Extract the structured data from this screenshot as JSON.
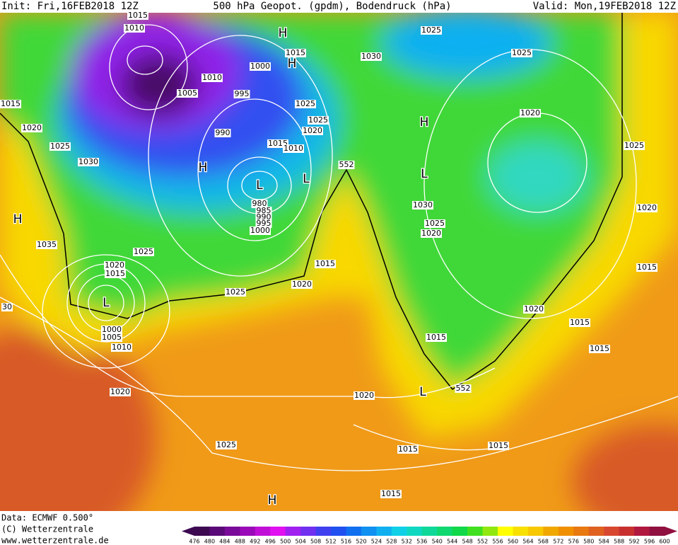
{
  "header": {
    "init": "Init: Fri,16FEB2018 12Z",
    "title": "500 hPa Geopot. (gpdm), Bodendruck (hPa)",
    "valid": "Valid: Mon,19FEB2018 12Z"
  },
  "footer": {
    "data": "Data: ECMWF  0.500°",
    "copyright": "(C) Wetterzentrale",
    "url": "www.wetterzentrale.de"
  },
  "isobar_labels": [
    "1015",
    "1010",
    "1010",
    "1005",
    "995",
    "1000",
    "990",
    "1015",
    "1030",
    "1025",
    "1025",
    "1025",
    "1025",
    "1020",
    "1015",
    "1010",
    "1015",
    "1020",
    "1025",
    "1030",
    "1020",
    "1025",
    "552",
    "1030",
    "1025",
    "1020",
    "1020",
    "980",
    "985",
    "990",
    "995",
    "1000",
    "1035",
    "1025",
    "1020",
    "1015",
    "1015",
    "1015",
    "1020",
    "1025",
    "30",
    "1020",
    "1015",
    "1000",
    "1005",
    "1010",
    "1015",
    "1015",
    "552",
    "1020",
    "1020",
    "1025",
    "1015",
    "1015",
    "1015"
  ],
  "pressure_centers": [
    "H",
    "H",
    "H",
    "L",
    "H",
    "L",
    "H",
    "L",
    "L",
    "H",
    "L"
  ],
  "colorbar": {
    "labels": [
      476,
      480,
      484,
      488,
      492,
      496,
      500,
      504,
      508,
      512,
      516,
      520,
      524,
      528,
      532,
      536,
      540,
      544,
      548,
      552,
      556,
      560,
      564,
      568,
      572,
      576,
      580,
      584,
      588,
      592,
      596,
      600
    ],
    "colors": [
      "#3d0a52",
      "#5a0a78",
      "#7a0a99",
      "#9a0ab8",
      "#c010d8",
      "#e010f0",
      "#a020f0",
      "#7030f0",
      "#4040f0",
      "#2050f0",
      "#1070f0",
      "#1090f0",
      "#10b0f0",
      "#10d0e8",
      "#10d8c0",
      "#10d898",
      "#10d870",
      "#10d848",
      "#40e020",
      "#90e810",
      "#ffff00",
      "#f8e000",
      "#f8c800",
      "#f0a800",
      "#f09000",
      "#e87810",
      "#e06020",
      "#d84830",
      "#c83030",
      "#b01840",
      "#901040"
    ]
  }
}
